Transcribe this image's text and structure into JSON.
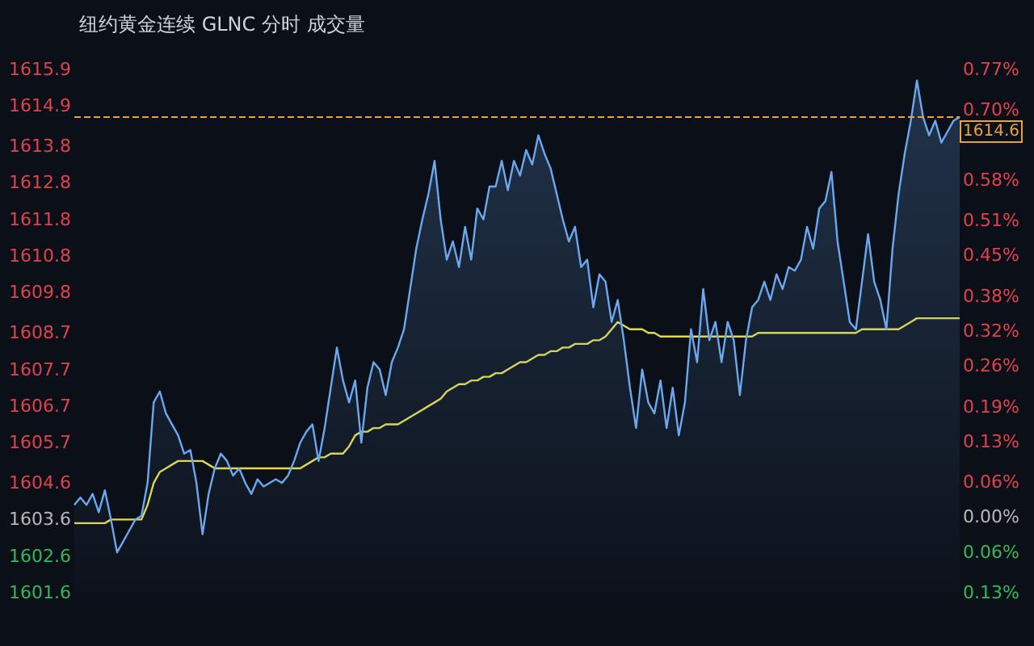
{
  "chart_data": {
    "type": "area",
    "title": "纽约黄金连续 GLNC 分时 成交量",
    "categories": [
      null,
      null,
      null,
      null,
      null,
      null,
      null,
      null,
      null,
      null,
      null,
      null,
      null,
      null,
      null,
      null,
      null,
      null,
      null,
      null,
      null,
      null,
      null,
      null,
      null,
      null,
      null,
      null,
      null,
      null,
      null,
      null,
      null,
      null,
      null,
      null,
      null,
      null,
      null,
      null,
      null,
      null,
      null,
      null,
      null,
      null,
      null,
      null,
      null,
      null,
      null,
      null,
      null,
      null,
      null,
      null,
      null,
      null,
      null,
      null,
      null,
      null,
      null,
      null,
      null,
      null,
      null,
      null,
      null,
      null,
      null,
      null,
      null,
      null,
      null,
      null,
      null,
      null,
      null,
      null,
      null,
      null,
      null,
      null,
      null,
      null,
      null,
      null,
      null,
      null,
      null,
      null,
      null,
      null,
      null,
      null,
      null,
      null,
      null,
      null,
      null,
      null,
      null,
      null,
      null,
      null,
      null,
      null,
      null,
      null,
      null,
      null,
      null,
      null,
      null,
      null,
      null,
      null,
      null,
      null,
      null,
      null,
      null,
      null,
      null,
      null,
      null,
      null,
      null,
      null,
      null,
      null,
      null,
      null,
      null,
      null,
      null,
      null,
      null,
      null,
      null,
      null,
      null,
      null,
      null,
      null
    ],
    "series": [
      {
        "color": "#6aa8f0",
        "values": [
          1604.0,
          1604.2,
          1604.0,
          1604.3,
          1603.8,
          1604.4,
          1603.6,
          1602.7,
          1603.0,
          1603.3,
          1603.6,
          1603.7,
          1604.6,
          1606.8,
          1607.1,
          1606.5,
          1606.2,
          1605.9,
          1605.4,
          1605.5,
          1604.6,
          1603.2,
          1604.3,
          1605.0,
          1605.4,
          1605.2,
          1604.8,
          1605.0,
          1604.6,
          1604.3,
          1604.7,
          1604.5,
          1604.6,
          1604.7,
          1604.6,
          1604.8,
          1605.2,
          1605.7,
          1606.0,
          1606.2,
          1605.2,
          1606.1,
          1607.2,
          1608.3,
          1607.4,
          1606.8,
          1607.4,
          1605.7,
          1607.2,
          1607.9,
          1607.7,
          1607.0,
          1607.9,
          1608.3,
          1608.8,
          1609.9,
          1611.0,
          1611.8,
          1612.5,
          1613.4,
          1611.8,
          1610.7,
          1611.2,
          1610.5,
          1611.6,
          1610.7,
          1612.1,
          1611.8,
          1612.7,
          1612.7,
          1613.4,
          1612.6,
          1613.4,
          1613.0,
          1613.7,
          1613.3,
          1614.1,
          1613.6,
          1613.2,
          1612.5,
          1611.8,
          1611.2,
          1611.6,
          1610.5,
          1610.7,
          1609.4,
          1610.3,
          1610.1,
          1609.0,
          1609.6,
          1608.5,
          1607.2,
          1606.1,
          1607.7,
          1606.8,
          1606.5,
          1607.4,
          1606.1,
          1607.2,
          1605.9,
          1606.8,
          1608.8,
          1607.9,
          1609.9,
          1608.5,
          1609.0,
          1607.9,
          1609.0,
          1608.5,
          1607.0,
          1608.5,
          1609.4,
          1609.6,
          1610.1,
          1609.6,
          1610.3,
          1609.9,
          1610.5,
          1610.4,
          1610.7,
          1611.6,
          1611.0,
          1612.1,
          1612.3,
          1613.1,
          1611.2,
          1610.1,
          1609.0,
          1608.8,
          1610.1,
          1611.4,
          1610.1,
          1609.6,
          1608.8,
          1611.0,
          1612.5,
          1613.6,
          1614.5,
          1615.6,
          1614.6,
          1614.1,
          1614.5,
          1613.9,
          1614.2,
          1614.5,
          1614.6
        ]
      },
      {
        "type": "line",
        "color": "#e3d94a",
        "values": [
          1603.5,
          1603.5,
          1603.5,
          1603.5,
          1603.5,
          1603.5,
          1603.6,
          1603.6,
          1603.6,
          1603.6,
          1603.6,
          1603.6,
          1604.0,
          1604.6,
          1604.9,
          1605.0,
          1605.1,
          1605.2,
          1605.2,
          1605.2,
          1605.2,
          1605.2,
          1605.1,
          1605.0,
          1605.0,
          1605.0,
          1605.0,
          1605.0,
          1605.0,
          1605.0,
          1605.0,
          1605.0,
          1605.0,
          1605.0,
          1605.0,
          1605.0,
          1605.0,
          1605.0,
          1605.1,
          1605.2,
          1605.3,
          1605.3,
          1605.4,
          1605.4,
          1605.4,
          1605.6,
          1605.9,
          1606.0,
          1606.0,
          1606.1,
          1606.1,
          1606.2,
          1606.2,
          1606.2,
          1606.3,
          1606.4,
          1606.5,
          1606.6,
          1606.7,
          1606.8,
          1606.9,
          1607.1,
          1607.2,
          1607.3,
          1607.3,
          1607.4,
          1607.4,
          1607.5,
          1607.5,
          1607.6,
          1607.6,
          1607.7,
          1607.8,
          1607.9,
          1607.9,
          1608.0,
          1608.1,
          1608.1,
          1608.2,
          1608.2,
          1608.3,
          1608.3,
          1608.4,
          1608.4,
          1608.4,
          1608.5,
          1608.5,
          1608.6,
          1608.8,
          1609.0,
          1608.9,
          1608.8,
          1608.8,
          1608.8,
          1608.7,
          1608.7,
          1608.6,
          1608.6,
          1608.6,
          1608.6,
          1608.6,
          1608.6,
          1608.6,
          1608.6,
          1608.6,
          1608.6,
          1608.6,
          1608.6,
          1608.6,
          1608.6,
          1608.6,
          1608.6,
          1608.7,
          1608.7,
          1608.7,
          1608.7,
          1608.7,
          1608.7,
          1608.7,
          1608.7,
          1608.7,
          1608.7,
          1608.7,
          1608.7,
          1608.7,
          1608.7,
          1608.7,
          1608.7,
          1608.7,
          1608.8,
          1608.8,
          1608.8,
          1608.8,
          1608.8,
          1608.8,
          1608.8,
          1608.9,
          1609.0,
          1609.1,
          1609.1,
          1609.1,
          1609.1,
          1609.1,
          1609.1,
          1609.1,
          1609.1
        ]
      }
    ],
    "ylim": [
      1601.6,
      1615.9
    ],
    "yticks": [
      1601.6,
      1602.6,
      1603.6,
      1604.6,
      1605.7,
      1606.7,
      1607.7,
      1608.7,
      1609.8,
      1610.8,
      1611.8,
      1612.8,
      1613.8,
      1614.9,
      1615.9
    ],
    "y2lim": [
      -0.13,
      0.77
    ],
    "y2ticks": [
      {
        "value": -0.13,
        "label": "0.13%"
      },
      {
        "value": -0.06,
        "label": "0.06%"
      },
      {
        "value": 0,
        "label": "0.00%"
      },
      {
        "value": 0.06,
        "label": "0.06%"
      },
      {
        "value": 0.13,
        "label": "0.13%"
      },
      {
        "value": 0.19,
        "label": "0.19%"
      },
      {
        "value": 0.26,
        "label": "0.26%"
      },
      {
        "value": 0.32,
        "label": "0.32%"
      },
      {
        "value": 0.38,
        "label": "0.38%"
      },
      {
        "value": 0.45,
        "label": "0.45%"
      },
      {
        "value": 0.51,
        "label": "0.51%"
      },
      {
        "value": 0.58,
        "label": "0.58%"
      },
      {
        "value": 0.7,
        "label": "0.70%"
      },
      {
        "value": 0.77,
        "label": "0.77%"
      }
    ],
    "ref_lines": [
      {
        "axis": "y",
        "value": 1614.6,
        "label": "1614.6",
        "color": "#e8a33c",
        "line_style": "dashed"
      }
    ],
    "marker": "none"
  }
}
